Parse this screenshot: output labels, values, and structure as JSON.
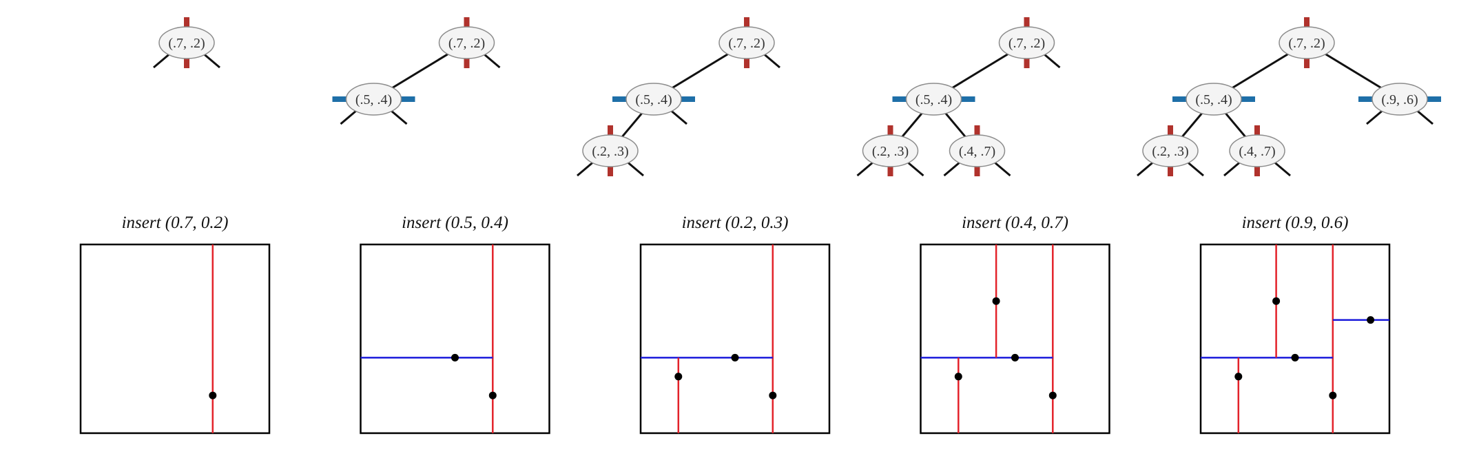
{
  "colors": {
    "vertical_split": "#e3222a",
    "horizontal_split": "#1a1adb",
    "tree_vertical_tick": "#b0322c",
    "tree_horizontal_tick": "#1e6fa8",
    "node_fill": "#f4f4f4",
    "node_stroke": "#8c8c8c",
    "edge": "#111111",
    "point": "#000000"
  },
  "steps": [
    {
      "caption": "insert (0.7, 0.2)",
      "nodes": [
        {
          "label": "(.7, .2)",
          "level": 0,
          "split": "vertical"
        }
      ],
      "points": [
        [
          0.7,
          0.2
        ]
      ]
    },
    {
      "caption": "insert (0.5, 0.4)",
      "nodes": [
        {
          "label": "(.7, .2)",
          "level": 0,
          "split": "vertical"
        },
        {
          "label": "(.5, .4)",
          "level": 1,
          "split": "horizontal"
        }
      ],
      "points": [
        [
          0.7,
          0.2
        ],
        [
          0.5,
          0.4
        ]
      ]
    },
    {
      "caption": "insert (0.2, 0.3)",
      "nodes": [
        {
          "label": "(.7, .2)",
          "level": 0,
          "split": "vertical"
        },
        {
          "label": "(.5, .4)",
          "level": 1,
          "split": "horizontal"
        },
        {
          "label": "(.2, .3)",
          "level": 2,
          "split": "vertical"
        }
      ],
      "points": [
        [
          0.7,
          0.2
        ],
        [
          0.5,
          0.4
        ],
        [
          0.2,
          0.3
        ]
      ]
    },
    {
      "caption": "insert (0.4, 0.7)",
      "nodes": [
        {
          "label": "(.7, .2)",
          "level": 0,
          "split": "vertical"
        },
        {
          "label": "(.5, .4)",
          "level": 1,
          "split": "horizontal"
        },
        {
          "label": "(.2, .3)",
          "level": 2,
          "split": "vertical"
        },
        {
          "label": "(.4, .7)",
          "level": 2,
          "split": "vertical"
        }
      ],
      "points": [
        [
          0.7,
          0.2
        ],
        [
          0.5,
          0.4
        ],
        [
          0.2,
          0.3
        ],
        [
          0.4,
          0.7
        ]
      ]
    },
    {
      "caption": "insert (0.9, 0.6)",
      "nodes": [
        {
          "label": "(.7, .2)",
          "level": 0,
          "split": "vertical"
        },
        {
          "label": "(.5, .4)",
          "level": 1,
          "split": "horizontal"
        },
        {
          "label": "(.9, .6)",
          "level": 1,
          "split": "horizontal"
        },
        {
          "label": "(.2, .3)",
          "level": 2,
          "split": "vertical"
        },
        {
          "label": "(.4, .7)",
          "level": 2,
          "split": "vertical"
        }
      ],
      "points": [
        [
          0.7,
          0.2
        ],
        [
          0.5,
          0.4
        ],
        [
          0.2,
          0.3
        ],
        [
          0.4,
          0.7
        ],
        [
          0.9,
          0.6
        ]
      ]
    }
  ]
}
